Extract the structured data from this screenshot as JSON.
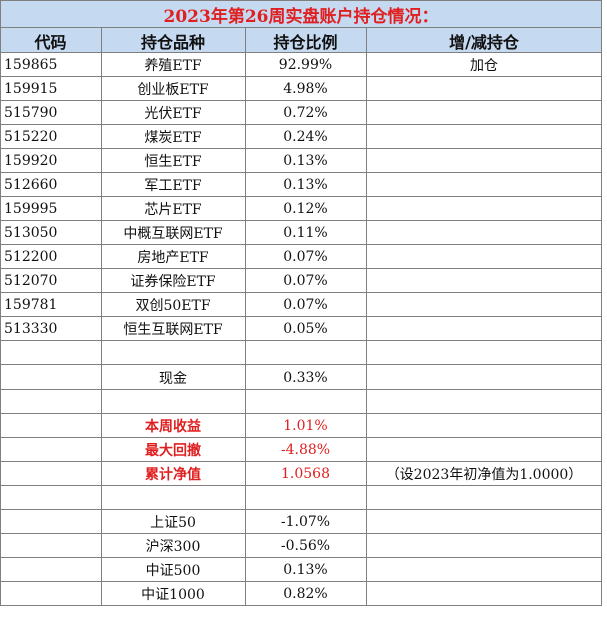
{
  "title": "2023年第26周实盘账户持仓情况：",
  "headers": [
    "代码",
    "持仓品种",
    "持仓比例",
    "增/减持仓"
  ],
  "holdings": [
    {
      "code": "159865",
      "name": "养殖ETF",
      "ratio": "92.99%",
      "change": "加仓"
    },
    {
      "code": "159915",
      "name": "创业板ETF",
      "ratio": "4.98%",
      "change": ""
    },
    {
      "code": "515790",
      "name": "光伏ETF",
      "ratio": "0.72%",
      "change": ""
    },
    {
      "code": "515220",
      "name": "煤炭ETF",
      "ratio": "0.24%",
      "change": ""
    },
    {
      "code": "159920",
      "name": "恒生ETF",
      "ratio": "0.13%",
      "change": ""
    },
    {
      "code": "512660",
      "name": "军工ETF",
      "ratio": "0.13%",
      "change": ""
    },
    {
      "code": "159995",
      "name": "芯片ETF",
      "ratio": "0.12%",
      "change": ""
    },
    {
      "code": "513050",
      "name": "中概互联网ETF",
      "ratio": "0.11%",
      "change": ""
    },
    {
      "code": "512200",
      "name": "房地产ETF",
      "ratio": "0.07%",
      "change": ""
    },
    {
      "code": "512070",
      "name": "证券保险ETF",
      "ratio": "0.07%",
      "change": ""
    },
    {
      "code": "159781",
      "name": "双创50ETF",
      "ratio": "0.07%",
      "change": ""
    },
    {
      "code": "513330",
      "name": "恒生互联网ETF",
      "ratio": "0.05%",
      "change": ""
    }
  ],
  "cash": {
    "label": "现金",
    "ratio": "0.33%"
  },
  "performance": [
    {
      "label": "本周收益",
      "value": "1.01%",
      "note": ""
    },
    {
      "label": "最大回撤",
      "value": "-4.88%",
      "note": ""
    },
    {
      "label": "累计净值",
      "value": "1.0568",
      "note": "（设2023年初净值为1.0000）"
    }
  ],
  "indices": [
    {
      "label": "上证50",
      "value": "-1.07%"
    },
    {
      "label": "沪深300",
      "value": "-0.56%"
    },
    {
      "label": "中证500",
      "value": "0.13%"
    },
    {
      "label": "中证1000",
      "value": "0.82%"
    }
  ],
  "colors": {
    "title_bg": "#c5d9f1",
    "header_bg": "#c5d9f1",
    "accent_red": "#e02020",
    "grid": "#7f7f7f"
  }
}
